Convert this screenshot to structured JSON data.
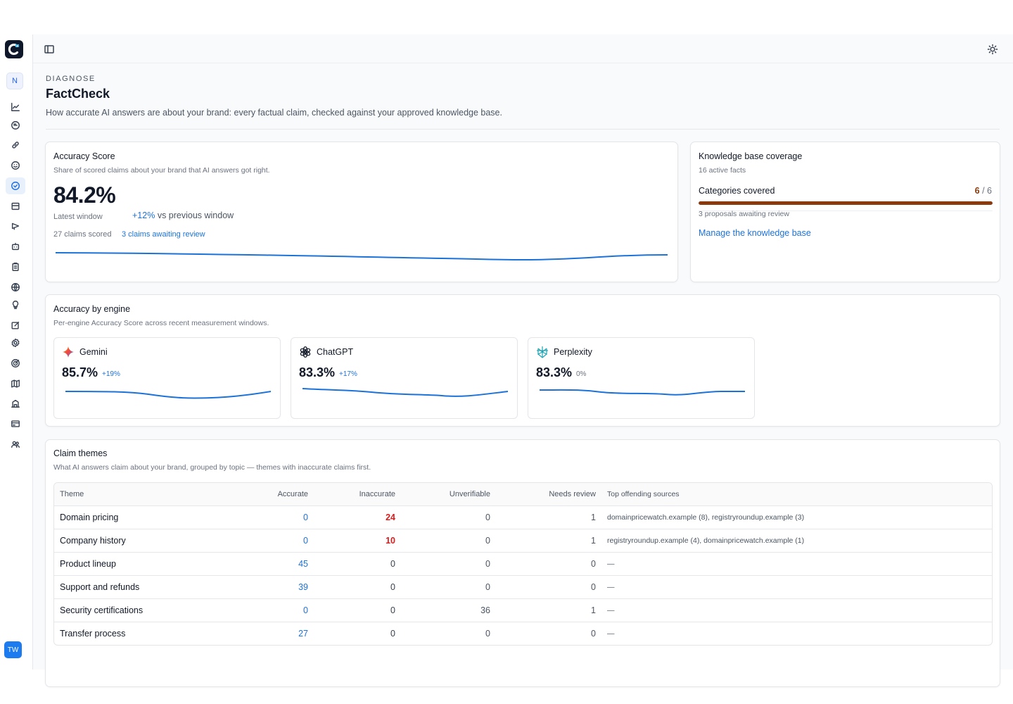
{
  "sidebar": {
    "logo_icon": "app-logo-icon",
    "workspace_initial": "N",
    "nav_icons": [
      "chart-line-icon",
      "chat-bubble-icon",
      "link-icon",
      "smiley-icon",
      "check-circle-icon",
      "store-icon",
      "megaphone-icon",
      "robot-icon",
      "clipboard-icon",
      "globe-icon",
      "lightbulb-icon",
      "edit-icon",
      "settings-icon",
      "target-icon",
      "map-icon",
      "building-icon",
      "credit-card-icon",
      "users-icon"
    ],
    "active_index": 4,
    "user_initials": "TW"
  },
  "topbar": {
    "sidebar_toggle_icon": "sidebar-toggle-icon",
    "theme_icon": "sun-icon"
  },
  "header": {
    "eyebrow": "DIAGNOSE",
    "title": "FactCheck",
    "subtitle": "How accurate AI answers are about your brand: every factual claim, checked against your approved knowledge base."
  },
  "accuracy": {
    "title": "Accuracy Score",
    "subtitle": "Share of scored claims about your brand that AI answers got right.",
    "value": "84.2%",
    "window_label": "Latest window",
    "delta": "+12%",
    "delta_suffix": "vs previous window",
    "claims_scored": "27 claims scored",
    "awaiting_link": "3 claims awaiting review",
    "accent": "#1d72d8"
  },
  "knowledge": {
    "title": "Knowledge base coverage",
    "active_facts": "16 active facts",
    "categories_label": "Categories covered",
    "covered": "6",
    "separator": "/",
    "total": "6",
    "coverage_fraction": 1.0,
    "bar_color": "#8a3a0c",
    "proposals": "3 proposals awaiting review",
    "manage_link": "Manage the knowledge base"
  },
  "engines_section": {
    "title": "Accuracy by engine",
    "subtitle": "Per-engine Accuracy Score across recent measurement windows.",
    "engines": [
      {
        "name": "Gemini",
        "icon": "gemini-icon",
        "value": "85.7%",
        "delta": "+19%"
      },
      {
        "name": "ChatGPT",
        "icon": "chatgpt-icon",
        "value": "83.3%",
        "delta": "+17%"
      },
      {
        "name": "Perplexity",
        "icon": "perplexity-icon",
        "value": "83.3%",
        "delta": "0%"
      }
    ]
  },
  "themes": {
    "title": "Claim themes",
    "subtitle": "What AI answers claim about your brand, grouped by topic — themes with inaccurate claims first.",
    "columns": [
      "Theme",
      "Accurate",
      "Inaccurate",
      "Unverifiable",
      "Needs review",
      "Top offending sources"
    ],
    "rows": [
      {
        "theme": "Domain pricing",
        "accurate": "0",
        "inaccurate": "24",
        "unverifiable": "0",
        "needs_review": "1",
        "sources": "domainpricewatch.example (8), registryroundup.example (3)"
      },
      {
        "theme": "Company history",
        "accurate": "0",
        "inaccurate": "10",
        "unverifiable": "0",
        "needs_review": "1",
        "sources": "registryroundup.example (4), domainpricewatch.example (1)"
      },
      {
        "theme": "Product lineup",
        "accurate": "45",
        "inaccurate": "0",
        "unverifiable": "0",
        "needs_review": "0",
        "sources": "—"
      },
      {
        "theme": "Support and refunds",
        "accurate": "39",
        "inaccurate": "0",
        "unverifiable": "0",
        "needs_review": "0",
        "sources": "—"
      },
      {
        "theme": "Security certifications",
        "accurate": "0",
        "inaccurate": "0",
        "unverifiable": "36",
        "needs_review": "1",
        "sources": "—"
      },
      {
        "theme": "Transfer process",
        "accurate": "27",
        "inaccurate": "0",
        "unverifiable": "0",
        "needs_review": "0",
        "sources": "—"
      }
    ]
  }
}
